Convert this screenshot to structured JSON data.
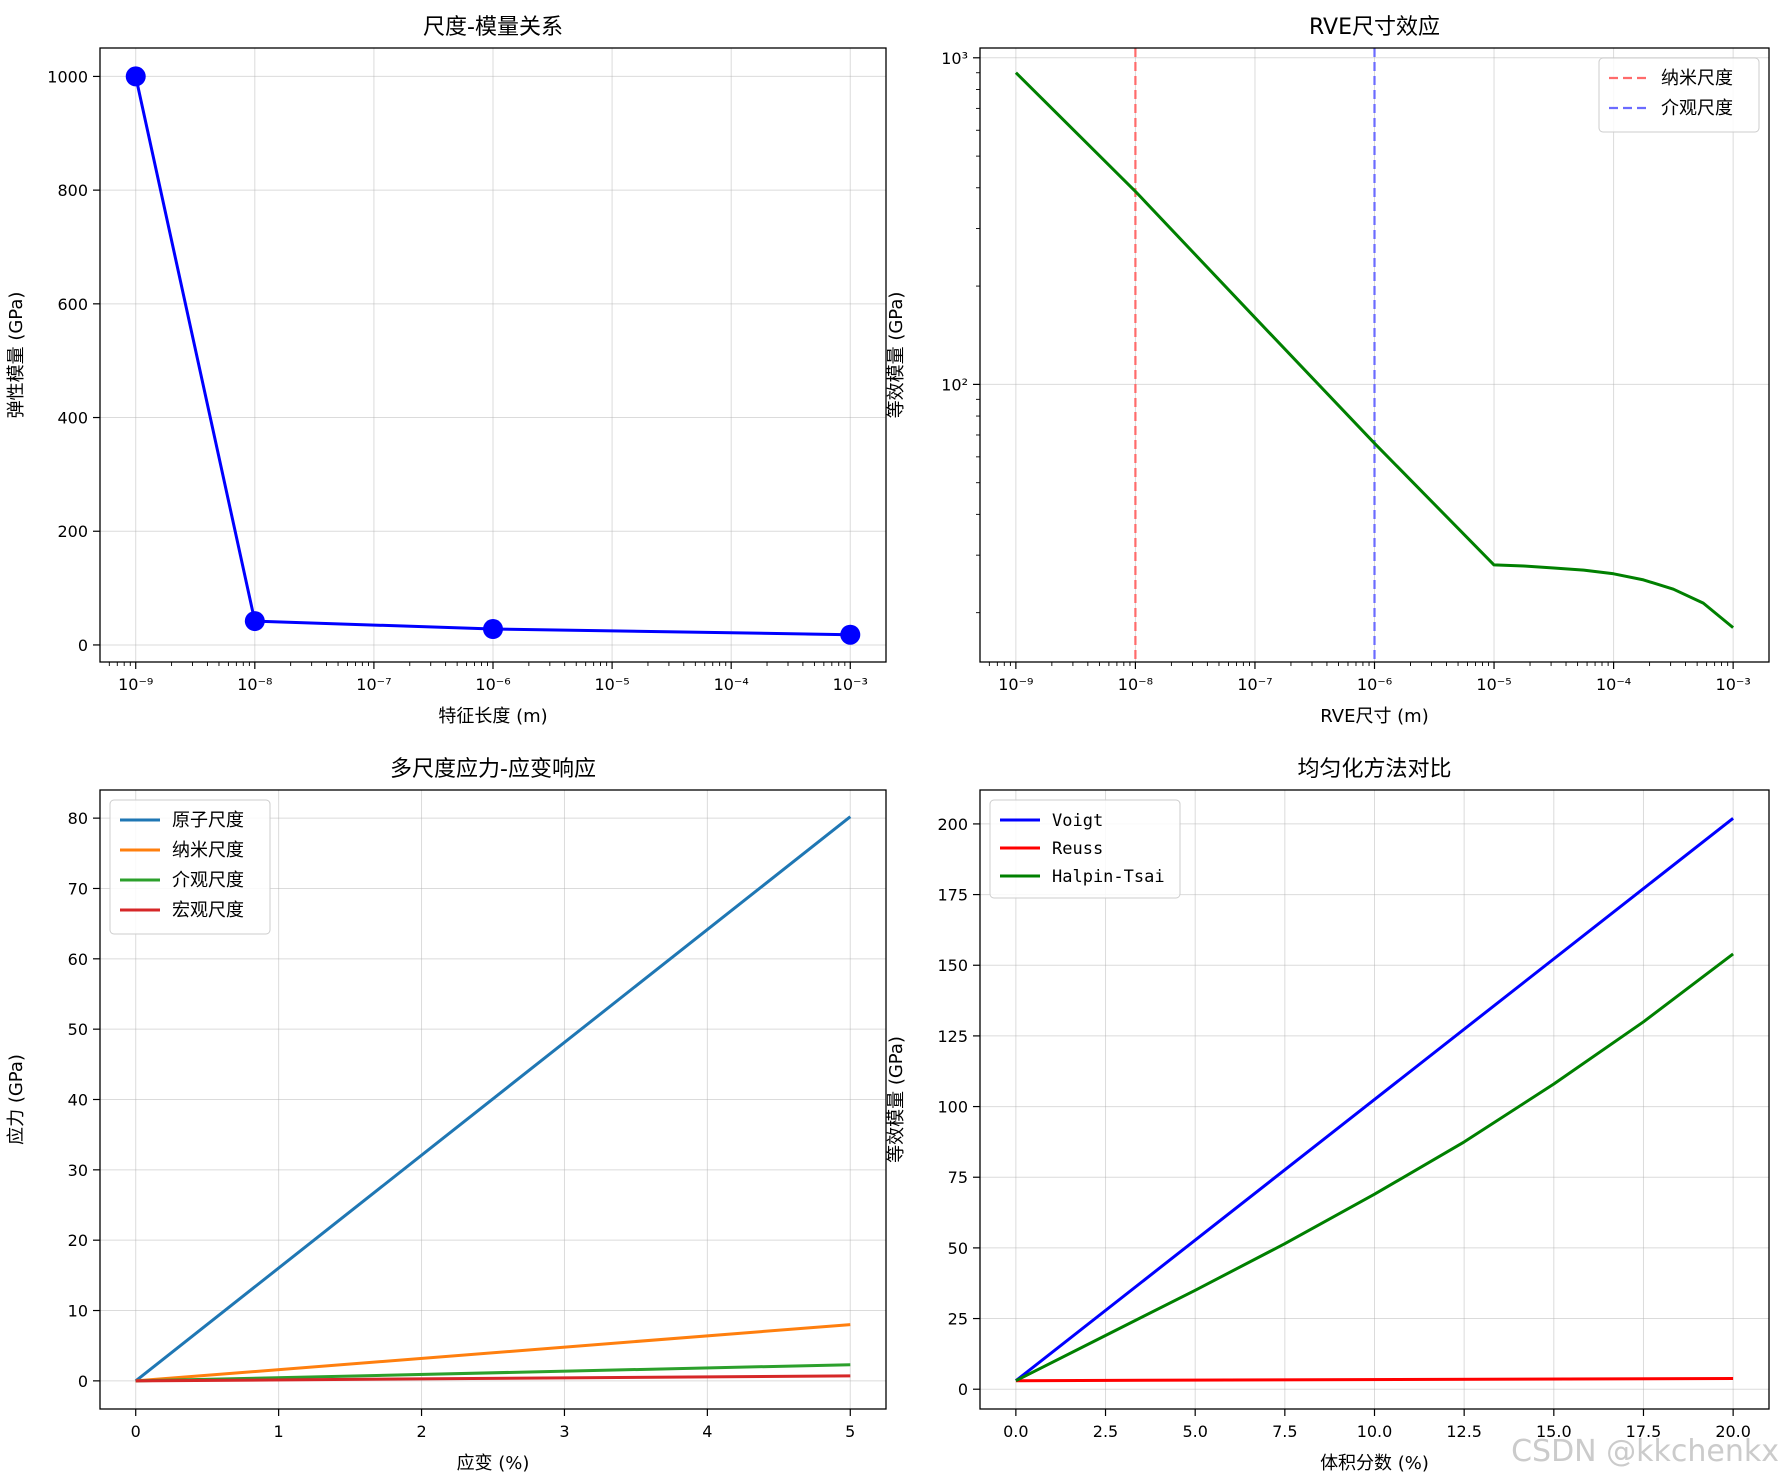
{
  "watermark": "CSDN @kkchenkx",
  "chart_data": [
    {
      "id": "scale-modulus",
      "type": "line",
      "title": "尺度-模量关系",
      "xlabel": "特征长度 (m)",
      "ylabel": "弹性模量 (GPa)",
      "xscale": "log",
      "yscale": "linear",
      "xlim_exp": [
        -9.3,
        -2.7
      ],
      "ylim": [
        -30,
        1050
      ],
      "xticks_exp": [
        -9,
        -8,
        -7,
        -6,
        -5,
        -4,
        -3
      ],
      "xtick_labels": [
        "10⁻⁹",
        "10⁻⁸",
        "10⁻⁷",
        "10⁻⁶",
        "10⁻⁵",
        "10⁻⁴",
        "10⁻³"
      ],
      "yticks": [
        0,
        200,
        400,
        600,
        800,
        1000
      ],
      "ytick_labels": [
        "0",
        "200",
        "400",
        "600",
        "800",
        "1000"
      ],
      "grid": true,
      "series": [
        {
          "name": "弹性模量",
          "color": "#0000ff",
          "marker": "circle",
          "x_exp": [
            -9,
            -8,
            -6,
            -3
          ],
          "y": [
            1000,
            42,
            28,
            18
          ]
        }
      ]
    },
    {
      "id": "rve-size",
      "type": "line",
      "title": "RVE尺寸效应",
      "xlabel": "RVE尺寸 (m)",
      "ylabel": "等效模量 (GPa)",
      "xscale": "log",
      "yscale": "log",
      "xlim_exp": [
        -9.3,
        -2.7
      ],
      "ylim_exp": [
        1.15,
        3.03
      ],
      "xticks_exp": [
        -9,
        -8,
        -7,
        -6,
        -5,
        -4,
        -3
      ],
      "xtick_labels": [
        "10⁻⁹",
        "10⁻⁸",
        "10⁻⁷",
        "10⁻⁶",
        "10⁻⁵",
        "10⁻⁴",
        "10⁻³"
      ],
      "yticks_exp": [
        2,
        3
      ],
      "ytick_labels": [
        "10²",
        "10³"
      ],
      "grid": true,
      "legend_position": "upper right",
      "vlines": [
        {
          "name": "纳米尺度",
          "x_exp": -8,
          "color": "#ff6b6b"
        },
        {
          "name": "介观尺度",
          "x_exp": -6,
          "color": "#6b6bff"
        }
      ],
      "series": [
        {
          "name": "等效模量",
          "color": "#008000",
          "x_exp": [
            -9,
            -8,
            -7,
            -6,
            -5,
            -4.75,
            -4.5,
            -4.25,
            -4,
            -3.75,
            -3.5,
            -3.25,
            -3
          ],
          "y": [
            900,
            390,
            160,
            66,
            28,
            27.8,
            27.4,
            27.0,
            26.3,
            25.2,
            23.6,
            21.4,
            18
          ]
        }
      ]
    },
    {
      "id": "stress-strain",
      "type": "line",
      "title": "多尺度应力-应变响应",
      "xlabel": "应变 (%)",
      "ylabel": "应力 (GPa)",
      "xscale": "linear",
      "yscale": "linear",
      "xlim": [
        -0.25,
        5.25
      ],
      "ylim": [
        -4,
        84
      ],
      "xticks": [
        0,
        1,
        2,
        3,
        4,
        5
      ],
      "xtick_labels": [
        "0",
        "1",
        "2",
        "3",
        "4",
        "5"
      ],
      "yticks": [
        0,
        10,
        20,
        30,
        40,
        50,
        60,
        70,
        80
      ],
      "ytick_labels": [
        "0",
        "10",
        "20",
        "30",
        "40",
        "50",
        "60",
        "70",
        "80"
      ],
      "grid": true,
      "legend_position": "upper left",
      "series": [
        {
          "name": "原子尺度",
          "color": "#1f77b4",
          "x": [
            0,
            5
          ],
          "y": [
            0,
            80.2
          ]
        },
        {
          "name": "纳米尺度",
          "color": "#ff7f0e",
          "x": [
            0,
            5
          ],
          "y": [
            0,
            8.0
          ]
        },
        {
          "name": "介观尺度",
          "color": "#2ca02c",
          "x": [
            0,
            5
          ],
          "y": [
            0,
            2.3
          ]
        },
        {
          "name": "宏观尺度",
          "color": "#d62728",
          "x": [
            0,
            5
          ],
          "y": [
            0,
            0.7
          ]
        }
      ]
    },
    {
      "id": "homogenization",
      "type": "line",
      "title": "均匀化方法对比",
      "xlabel": "体积分数 (%)",
      "ylabel": "等效模量 (GPa)",
      "xscale": "linear",
      "yscale": "linear",
      "xlim": [
        -1.0,
        21.0
      ],
      "ylim": [
        -7,
        212
      ],
      "xticks": [
        0,
        2.5,
        5,
        7.5,
        10,
        12.5,
        15,
        17.5,
        20
      ],
      "xtick_labels": [
        "0.0",
        "2.5",
        "5.0",
        "7.5",
        "10.0",
        "12.5",
        "15.0",
        "17.5",
        "20.0"
      ],
      "yticks": [
        0,
        25,
        50,
        75,
        100,
        125,
        150,
        175,
        200
      ],
      "ytick_labels": [
        "0",
        "25",
        "50",
        "75",
        "100",
        "125",
        "150",
        "175",
        "200"
      ],
      "grid": true,
      "legend_position": "upper left",
      "series": [
        {
          "name": "Voigt",
          "color": "#0000ff",
          "x": [
            0,
            20
          ],
          "y": [
            3,
            202
          ]
        },
        {
          "name": "Reuss",
          "color": "#ff0000",
          "x": [
            0,
            20
          ],
          "y": [
            3,
            3.8
          ]
        },
        {
          "name": "Halpin-Tsai",
          "color": "#008000",
          "x": [
            0,
            2.5,
            5,
            7.5,
            10,
            12.5,
            15,
            17.5,
            20
          ],
          "y": [
            3,
            19,
            35,
            51.5,
            69,
            87.5,
            108,
            130,
            154
          ]
        }
      ]
    }
  ]
}
